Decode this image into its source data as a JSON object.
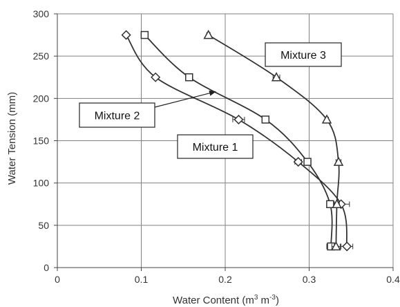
{
  "chart_data": {
    "type": "scatter",
    "title": "",
    "xlabel": "Water Content (m",
    "xlabel_unit_sup1": "3",
    "xlabel_unit_mid": " m",
    "xlabel_unit_sup2": "-3",
    "xlabel_close": ")",
    "ylabel": "Water Tension (mm)",
    "xlim": [
      0,
      0.4
    ],
    "ylim": [
      0,
      300
    ],
    "x_ticks": [
      0,
      0.1,
      0.2,
      0.3,
      0.4
    ],
    "x_tick_labels": [
      "0",
      "0.1",
      "0.2",
      "0.3",
      "0.4"
    ],
    "y_ticks": [
      0,
      50,
      100,
      150,
      200,
      250,
      300
    ],
    "y_tick_labels": [
      "0",
      "50",
      "100",
      "150",
      "200",
      "250",
      "300"
    ],
    "grid": true,
    "lines": "smoothed",
    "series": [
      {
        "name": "Mixture 1",
        "marker": "diamond",
        "points": [
          {
            "x": 0.082,
            "y": 275,
            "err": 0.002
          },
          {
            "x": 0.117,
            "y": 225,
            "err": 0.002
          },
          {
            "x": 0.216,
            "y": 175,
            "err": 0.007
          },
          {
            "x": 0.287,
            "y": 125,
            "err": 0.004
          },
          {
            "x": 0.338,
            "y": 75,
            "err": 0.01
          },
          {
            "x": 0.345,
            "y": 25,
            "err": 0.007
          }
        ]
      },
      {
        "name": "Mixture 2",
        "marker": "square",
        "points": [
          {
            "x": 0.104,
            "y": 275,
            "err": 0.002
          },
          {
            "x": 0.157,
            "y": 225,
            "err": 0.002
          },
          {
            "x": 0.248,
            "y": 175,
            "err": 0.004
          },
          {
            "x": 0.298,
            "y": 125,
            "err": 0.003
          },
          {
            "x": 0.325,
            "y": 75,
            "err": 0.003
          },
          {
            "x": 0.326,
            "y": 25,
            "err": 0.005
          }
        ]
      },
      {
        "name": "Mixture 3",
        "marker": "triangle",
        "points": [
          {
            "x": 0.18,
            "y": 275,
            "err": 0.002
          },
          {
            "x": 0.261,
            "y": 225,
            "err": 0.004
          },
          {
            "x": 0.321,
            "y": 175,
            "err": 0.002
          },
          {
            "x": 0.335,
            "y": 125,
            "err": 0.003
          },
          {
            "x": 0.333,
            "y": 75,
            "err": 0.003
          },
          {
            "x": 0.332,
            "y": 25,
            "err": 0.005
          }
        ]
      }
    ],
    "callouts": [
      {
        "text": "Mixture 3",
        "position": "upper-right"
      },
      {
        "text": "Mixture 2",
        "position": "left",
        "arrow_to_series": "Mixture 2"
      },
      {
        "text": "Mixture 1",
        "position": "center"
      }
    ],
    "colors": {
      "line": "#333333",
      "marker_stroke": "#333333",
      "grid": "#808080",
      "callout_border": "#222222",
      "text": "#333333"
    }
  }
}
